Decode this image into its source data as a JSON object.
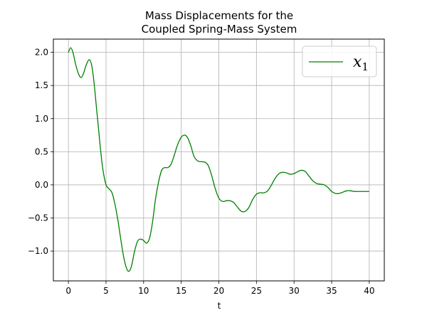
{
  "chart_data": {
    "type": "line",
    "title_lines": [
      "Mass Displacements for the",
      "Coupled Spring-Mass System"
    ],
    "xlabel": "t",
    "ylabel": "",
    "xlim": [
      -2,
      42
    ],
    "ylim": [
      -1.45,
      2.2
    ],
    "xticks": [
      0,
      5,
      10,
      15,
      20,
      25,
      30,
      35,
      40
    ],
    "yticks": [
      -1.0,
      -0.5,
      0.0,
      0.5,
      1.0,
      1.5,
      2.0
    ],
    "ytick_labels": [
      "−1.0",
      "−0.5",
      "0.0",
      "0.5",
      "1.0",
      "1.5",
      "2.0"
    ],
    "grid": true,
    "legend": {
      "position": "top-right",
      "entries": [
        {
          "base": "x",
          "sub": "1"
        }
      ]
    },
    "series": [
      {
        "name": "x1",
        "color": "#008000",
        "points": [
          [
            0,
            2.0
          ],
          [
            0.3,
            2.07
          ],
          [
            0.6,
            2.0
          ],
          [
            1.0,
            1.8
          ],
          [
            1.4,
            1.66
          ],
          [
            1.7,
            1.62
          ],
          [
            2.0,
            1.68
          ],
          [
            2.4,
            1.82
          ],
          [
            2.8,
            1.89
          ],
          [
            3.1,
            1.8
          ],
          [
            3.4,
            1.55
          ],
          [
            3.7,
            1.2
          ],
          [
            4.0,
            0.85
          ],
          [
            4.3,
            0.5
          ],
          [
            4.6,
            0.22
          ],
          [
            5.0,
            0.0
          ],
          [
            5.4,
            -0.06
          ],
          [
            5.8,
            -0.12
          ],
          [
            6.2,
            -0.3
          ],
          [
            6.6,
            -0.55
          ],
          [
            7.0,
            -0.85
          ],
          [
            7.4,
            -1.12
          ],
          [
            7.8,
            -1.28
          ],
          [
            8.1,
            -1.3
          ],
          [
            8.4,
            -1.22
          ],
          [
            8.8,
            -1.0
          ],
          [
            9.2,
            -0.85
          ],
          [
            9.6,
            -0.82
          ],
          [
            10.0,
            -0.84
          ],
          [
            10.4,
            -0.88
          ],
          [
            10.8,
            -0.8
          ],
          [
            11.2,
            -0.55
          ],
          [
            11.6,
            -0.2
          ],
          [
            12.0,
            0.05
          ],
          [
            12.4,
            0.22
          ],
          [
            12.8,
            0.26
          ],
          [
            13.2,
            0.26
          ],
          [
            13.6,
            0.3
          ],
          [
            14.0,
            0.42
          ],
          [
            14.5,
            0.6
          ],
          [
            15.0,
            0.72
          ],
          [
            15.5,
            0.75
          ],
          [
            15.9,
            0.7
          ],
          [
            16.3,
            0.58
          ],
          [
            16.7,
            0.43
          ],
          [
            17.2,
            0.36
          ],
          [
            17.7,
            0.35
          ],
          [
            18.2,
            0.34
          ],
          [
            18.6,
            0.29
          ],
          [
            19.0,
            0.16
          ],
          [
            19.5,
            -0.05
          ],
          [
            20.0,
            -0.2
          ],
          [
            20.5,
            -0.25
          ],
          [
            21.0,
            -0.24
          ],
          [
            21.5,
            -0.24
          ],
          [
            22.0,
            -0.27
          ],
          [
            22.5,
            -0.34
          ],
          [
            23.0,
            -0.4
          ],
          [
            23.5,
            -0.4
          ],
          [
            24.0,
            -0.34
          ],
          [
            24.5,
            -0.22
          ],
          [
            25.0,
            -0.14
          ],
          [
            25.5,
            -0.12
          ],
          [
            26.0,
            -0.12
          ],
          [
            26.5,
            -0.09
          ],
          [
            27.0,
            0.0
          ],
          [
            27.5,
            0.1
          ],
          [
            28.0,
            0.17
          ],
          [
            28.5,
            0.19
          ],
          [
            29.0,
            0.18
          ],
          [
            29.5,
            0.16
          ],
          [
            30.0,
            0.17
          ],
          [
            30.5,
            0.2
          ],
          [
            31.0,
            0.22
          ],
          [
            31.5,
            0.2
          ],
          [
            32.0,
            0.13
          ],
          [
            32.5,
            0.06
          ],
          [
            33.0,
            0.02
          ],
          [
            33.5,
            0.01
          ],
          [
            34.0,
            0.0
          ],
          [
            34.5,
            -0.04
          ],
          [
            35.0,
            -0.1
          ],
          [
            35.5,
            -0.13
          ],
          [
            36.0,
            -0.13
          ],
          [
            36.5,
            -0.11
          ],
          [
            37.0,
            -0.09
          ],
          [
            37.5,
            -0.09
          ],
          [
            38.0,
            -0.1
          ],
          [
            38.5,
            -0.1
          ],
          [
            39.0,
            -0.1
          ],
          [
            39.5,
            -0.1
          ],
          [
            40.0,
            -0.1
          ]
        ]
      }
    ]
  }
}
